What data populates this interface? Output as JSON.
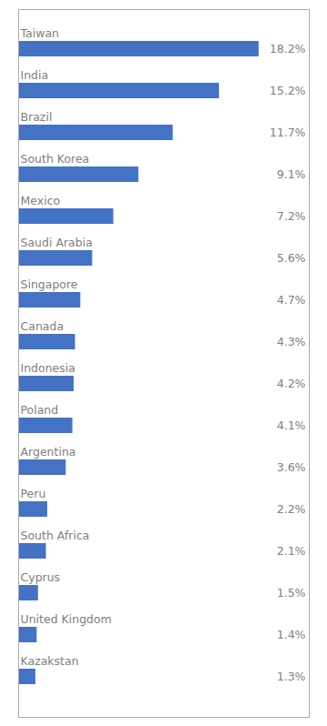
{
  "chart_data": {
    "type": "bar",
    "orientation": "horizontal",
    "categories": [
      "Taiwan",
      "India",
      "Brazil",
      "South Korea",
      "Mexico",
      "Saudi Arabia",
      "Singapore",
      "Canada",
      "Indonesia",
      "Poland",
      "Argentina",
      "Peru",
      "South Africa",
      "Cyprus",
      "United Kingdom",
      "Kazakstan"
    ],
    "values": [
      18.2,
      15.2,
      11.7,
      9.1,
      7.2,
      5.6,
      4.7,
      4.3,
      4.2,
      4.1,
      3.6,
      2.2,
      2.1,
      1.5,
      1.4,
      1.3
    ],
    "value_labels": [
      "18.2%",
      "15.2%",
      "11.7%",
      "9.1%",
      "7.2%",
      "5.6%",
      "4.7%",
      "4.3%",
      "4.2%",
      "4.1%",
      "3.6%",
      "2.2%",
      "2.1%",
      "1.5%",
      "1.4%",
      "1.3%"
    ],
    "color": "#4472C4",
    "xlim": [
      0,
      22
    ],
    "data_labels": true,
    "tick_labels": false
  }
}
